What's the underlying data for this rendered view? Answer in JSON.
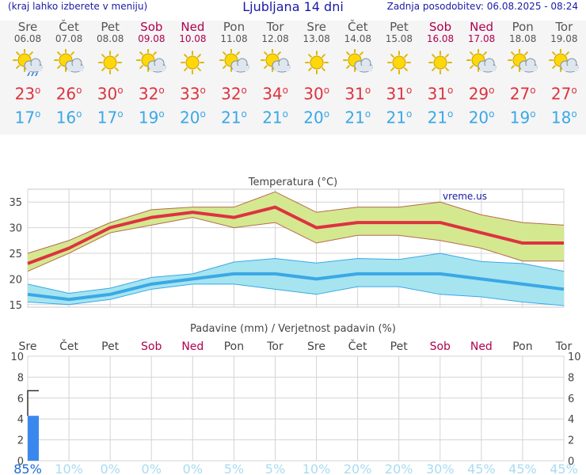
{
  "header": {
    "left": "(kraj lahko izberete v meniju)",
    "title": "Ljubljana 14 dni",
    "right": "Zadnja posodobitev: 06.08.2025 - 08:24"
  },
  "days": [
    {
      "name": "Sre",
      "date": "06.08",
      "weekend": false,
      "icon": "sun-cloud-rain-icon",
      "tmax": "23",
      "tmin": "17"
    },
    {
      "name": "Čet",
      "date": "07.08",
      "weekend": false,
      "icon": "sun-cloud-icon",
      "tmax": "26",
      "tmin": "16"
    },
    {
      "name": "Pet",
      "date": "08.08",
      "weekend": false,
      "icon": "sun-icon",
      "tmax": "30",
      "tmin": "17"
    },
    {
      "name": "Sob",
      "date": "09.08",
      "weekend": true,
      "icon": "sun-cloud-icon",
      "tmax": "32",
      "tmin": "19"
    },
    {
      "name": "Ned",
      "date": "10.08",
      "weekend": true,
      "icon": "sun-icon",
      "tmax": "33",
      "tmin": "20"
    },
    {
      "name": "Pon",
      "date": "11.08",
      "weekend": false,
      "icon": "sun-cloud-icon",
      "tmax": "32",
      "tmin": "21"
    },
    {
      "name": "Tor",
      "date": "12.08",
      "weekend": false,
      "icon": "sun-cloud-icon",
      "tmax": "34",
      "tmin": "21"
    },
    {
      "name": "Sre",
      "date": "13.08",
      "weekend": false,
      "icon": "sun-icon",
      "tmax": "30",
      "tmin": "20"
    },
    {
      "name": "Čet",
      "date": "14.08",
      "weekend": false,
      "icon": "sun-cloud-icon",
      "tmax": "31",
      "tmin": "21"
    },
    {
      "name": "Pet",
      "date": "15.08",
      "weekend": false,
      "icon": "sun-icon",
      "tmax": "31",
      "tmin": "21"
    },
    {
      "name": "Sob",
      "date": "16.08",
      "weekend": true,
      "icon": "sun-icon",
      "tmax": "31",
      "tmin": "21"
    },
    {
      "name": "Ned",
      "date": "17.08",
      "weekend": true,
      "icon": "sun-cloud-icon",
      "tmax": "29",
      "tmin": "20"
    },
    {
      "name": "Pon",
      "date": "18.08",
      "weekend": false,
      "icon": "sun-cloud-icon",
      "tmax": "27",
      "tmin": "19"
    },
    {
      "name": "Tor",
      "date": "19.08",
      "weekend": false,
      "icon": "sun-cloud-icon",
      "tmax": "27",
      "tmin": "18"
    }
  ],
  "colors": {
    "max_line": "#dd3340",
    "max_band": "#d4e890",
    "max_band_edge": "#b86a4a",
    "min_line": "#3aa8e6",
    "min_band": "#a6e4f0",
    "min_band_edge": "#3aa8e6",
    "weekend": "#b00050",
    "precip_bar": "#3a88ee",
    "chart_title": "#444",
    "watermark": "#1a1aa6"
  },
  "chart_data": [
    {
      "type": "line",
      "title": "Temperatura (°C)",
      "watermark": "vreme.us",
      "categories": [
        "06.08",
        "07.08",
        "08.08",
        "09.08",
        "10.08",
        "11.08",
        "12.08",
        "13.08",
        "14.08",
        "15.08",
        "16.08",
        "17.08",
        "18.08",
        "19.08"
      ],
      "ylim": [
        14.5,
        37.5
      ],
      "yticks": [
        15,
        20,
        25,
        30,
        35
      ],
      "grid": true,
      "series": [
        {
          "key": "max",
          "values": [
            23,
            26,
            30,
            32,
            33,
            32,
            34,
            30,
            31,
            31,
            31,
            29,
            27,
            27
          ],
          "band_low": [
            21.5,
            25,
            29,
            30.5,
            32,
            30,
            31,
            27,
            28.5,
            28.5,
            27.5,
            26,
            23.5,
            23.5
          ],
          "band_high": [
            25,
            27.5,
            31,
            33.5,
            34,
            34,
            37,
            33,
            34,
            34,
            35,
            32.5,
            31,
            30.5
          ]
        },
        {
          "key": "min",
          "values": [
            17,
            16,
            17,
            19,
            20,
            21,
            21,
            20,
            21,
            21,
            21,
            20,
            19,
            18
          ],
          "band_low": [
            15.5,
            15,
            16,
            18,
            19,
            19,
            18,
            17,
            18.5,
            18.5,
            17,
            16.5,
            15.5,
            14.8
          ],
          "band_high": [
            19,
            17.2,
            18.2,
            20.3,
            21,
            23.3,
            24,
            23.1,
            24,
            23.8,
            25,
            23.4,
            23,
            21.5
          ]
        }
      ]
    },
    {
      "type": "bar",
      "title": "Padavine (mm) / Verjetnost padavin (%)",
      "categories": [
        "Sre",
        "Čet",
        "Pet",
        "Sob",
        "Ned",
        "Pon",
        "Tor",
        "Sre",
        "Čet",
        "Pet",
        "Sob",
        "Ned",
        "Pon",
        "Tor"
      ],
      "weekend": [
        false,
        false,
        false,
        true,
        true,
        false,
        false,
        false,
        false,
        false,
        true,
        true,
        false,
        false
      ],
      "ylim": [
        0,
        10
      ],
      "yticks": [
        0,
        2,
        4,
        6,
        8,
        10
      ],
      "grid": true,
      "values": [
        4.3,
        0,
        0,
        0,
        0,
        0,
        0,
        0,
        0,
        0,
        0,
        0,
        0,
        0
      ],
      "range_high": [
        6.7,
        0,
        0,
        0,
        0,
        0,
        0,
        0,
        0,
        0,
        0,
        0,
        0,
        0
      ],
      "probability": [
        "85%",
        "10%",
        "0%",
        "0%",
        "0%",
        "5%",
        "5%",
        "10%",
        "20%",
        "20%",
        "30%",
        "45%",
        "45%",
        "45%"
      ]
    }
  ]
}
